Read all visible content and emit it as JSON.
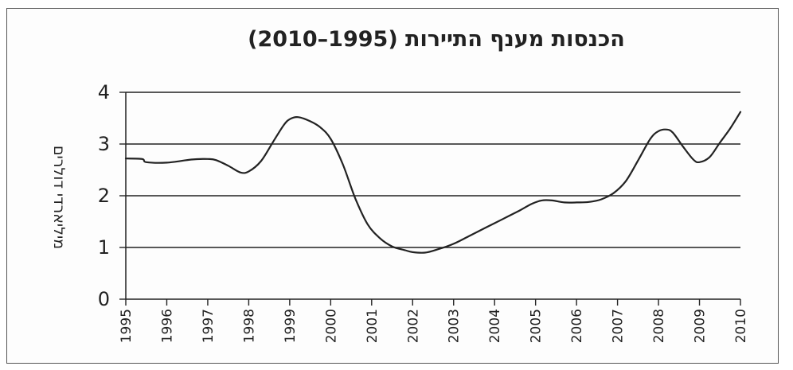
{
  "chart_data": {
    "type": "line",
    "title": "הכנסות מענף התיירות (1995–2010)",
    "ylabel": "מיליארדי דולרים",
    "xlabel": "",
    "x_ticks": [
      "1995",
      "1996",
      "1997",
      "1998",
      "1999",
      "2000",
      "2001",
      "2002",
      "2003",
      "2004",
      "2005",
      "2006",
      "2007",
      "2008",
      "2009",
      "2010"
    ],
    "xlim": [
      1995,
      2010
    ],
    "y_ticks": [
      "0",
      "1",
      "2",
      "3",
      "4"
    ],
    "ylim": [
      0,
      4
    ],
    "grid": "horizontal",
    "series": [
      {
        "x": [
          1995.0,
          1995.4,
          1995.5,
          1996.0,
          1996.6,
          1997.0,
          1997.2,
          1997.5,
          1997.8,
          1998.0,
          1998.3,
          1998.6,
          1998.85,
          1999.0,
          1999.2,
          1999.5,
          1999.75,
          2000.0,
          2000.3,
          2000.6,
          2000.9,
          2001.2,
          2001.5,
          2001.8,
          2002.0,
          2002.3,
          2002.6,
          2003.0,
          2003.4,
          2003.8,
          2004.2,
          2004.6,
          2004.9,
          2005.15,
          2005.4,
          2005.7,
          2006.0,
          2006.3,
          2006.6,
          2006.9,
          2007.2,
          2007.5,
          2007.8,
          2008.0,
          2008.2,
          2008.35,
          2008.6,
          2008.85,
          2009.0,
          2009.25,
          2009.5,
          2009.75,
          2010.0
        ],
        "y": [
          2.72,
          2.71,
          2.65,
          2.64,
          2.7,
          2.71,
          2.69,
          2.58,
          2.45,
          2.47,
          2.67,
          3.05,
          3.36,
          3.48,
          3.52,
          3.44,
          3.32,
          3.1,
          2.6,
          1.95,
          1.45,
          1.18,
          1.02,
          0.95,
          0.91,
          0.9,
          0.96,
          1.07,
          1.23,
          1.39,
          1.55,
          1.71,
          1.84,
          1.91,
          1.91,
          1.87,
          1.87,
          1.88,
          1.93,
          2.05,
          2.28,
          2.68,
          3.1,
          3.25,
          3.28,
          3.22,
          2.95,
          2.7,
          2.65,
          2.75,
          3.03,
          3.3,
          3.62
        ]
      }
    ],
    "colors": {
      "line": "#222222",
      "grid": "#222222",
      "axis": "#222222"
    }
  }
}
